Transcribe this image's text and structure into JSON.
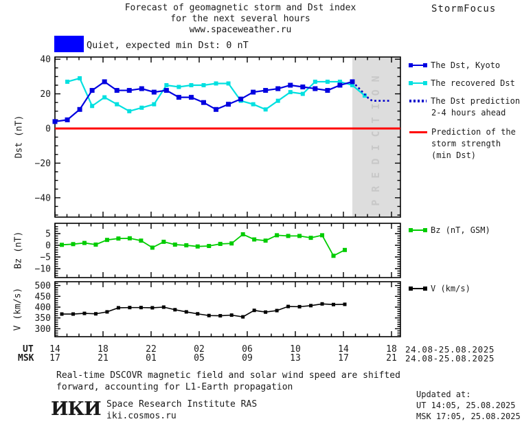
{
  "header": {
    "title_line1": "Forecast of geomagnetic storm and Dst index",
    "title_line2": "for the next several hours",
    "title_line3": "www.spaceweather.ru",
    "brand": "StormFocus"
  },
  "status": {
    "label": "Quiet, expected min Dst: 0 nT",
    "box_color": "#0000ff"
  },
  "legend": {
    "dst_kyoto": "The Dst, Kyoto",
    "recovered": "The recovered Dst",
    "prediction_line1": "The Dst prediction",
    "prediction_line2": "2-4 hours ahead",
    "strength_line1": "Prediction of the",
    "strength_line2": "storm strength",
    "strength_line3": "(min Dst)",
    "bz": "Bz (nT, GSM)",
    "v": "V (km/s)"
  },
  "xaxis": {
    "ut_label": "UT",
    "msk_label": "MSK",
    "tick_hours": [
      0,
      4,
      8,
      12,
      16,
      20,
      24,
      28
    ],
    "ut_ticks": [
      "14",
      "18",
      "22",
      "02",
      "06",
      "10",
      "14",
      "18"
    ],
    "msk_ticks": [
      "17",
      "21",
      "01",
      "05",
      "09",
      "13",
      "17",
      "21"
    ],
    "ut_date": "24.08-25.08.2025",
    "msk_date": "24.08-25.08.2025"
  },
  "chart_data": [
    {
      "type": "line",
      "panel": "dst",
      "ylabel": "Dst (nT)",
      "ylim": [
        -51,
        41
      ],
      "yticks": [
        40,
        20,
        0,
        -20,
        -40
      ],
      "y_minor_step": 5,
      "x_unit": "hours from 14:00 UT 24.08.2025",
      "prediction_zone_label": "PREDICTION",
      "series": [
        {
          "name": "The Dst, Kyoto",
          "color": "#0000e0",
          "style": "solid",
          "start_index": 0,
          "values": [
            4,
            5,
            11,
            22,
            27,
            22,
            22,
            23,
            21,
            22,
            18,
            18,
            15,
            11,
            14,
            17,
            21,
            22,
            23,
            25,
            24,
            23,
            22,
            25,
            27
          ]
        },
        {
          "name": "The recovered Dst",
          "color": "#00e0e0",
          "style": "solid",
          "start_index": 1,
          "values": [
            27,
            29,
            13,
            18,
            14,
            10,
            12,
            14,
            25,
            24,
            25,
            25,
            26,
            26,
            16,
            14,
            11,
            16,
            21,
            20,
            27,
            27,
            27,
            25,
            19
          ]
        },
        {
          "name": "The Dst prediction 2-4 hours ahead",
          "color": "#0000cc",
          "style": "dotted",
          "points": [
            [
              24,
              27
            ],
            [
              24.5,
              23.5
            ],
            [
              24.9,
              20.5
            ],
            [
              25.3,
              17.5
            ],
            [
              25.6,
              16
            ],
            [
              27.1,
              16
            ]
          ]
        },
        {
          "name": "Prediction of the storm strength (min Dst)",
          "color": "#ff0000",
          "style": "hline",
          "value": 0
        }
      ]
    },
    {
      "type": "line",
      "panel": "bz",
      "ylabel": "Bz (nT)",
      "ylim": [
        -14,
        9.5
      ],
      "yticks": [
        5,
        0,
        -5,
        -10
      ],
      "y_minor_step": 1,
      "series": [
        {
          "name": "Bz (nT, GSM)",
          "color": "#00cc00",
          "style": "solid",
          "start_index": 0,
          "values": [
            0.2,
            0.5,
            1,
            0.3,
            2.3,
            2.9,
            3,
            2,
            -1,
            1.5,
            0.3,
            0,
            -0.5,
            -0.3,
            0.6,
            0.8,
            4.7,
            2.5,
            2,
            4.3,
            4,
            4,
            3.2,
            4.3,
            -4.5,
            -2
          ]
        }
      ]
    },
    {
      "type": "line",
      "panel": "v",
      "ylabel": "V (km/s)",
      "ylim": [
        263,
        518
      ],
      "yticks": [
        500,
        450,
        400,
        350,
        300
      ],
      "y_minor_step": 10,
      "series": [
        {
          "name": "V (km/s)",
          "color": "#000000",
          "style": "solid",
          "start_index": 0,
          "values": [
            368,
            368,
            371,
            369,
            378,
            397,
            398,
            398,
            397,
            400,
            388,
            378,
            369,
            361,
            360,
            363,
            355,
            385,
            377,
            384,
            403,
            402,
            407,
            415,
            412,
            413
          ]
        }
      ]
    }
  ],
  "footer": {
    "note_line1": "Real-time DSCOVR magnetic field and solar wind speed are shifted",
    "note_line2": "forward, accounting for L1-Earth propagation",
    "logo": "ИКИ",
    "institute": "Space Research Institute RAS",
    "website": "iki.cosmos.ru",
    "updated_label": "Updated at:",
    "updated_ut": "UT  14:05, 25.08.2025",
    "updated_msk": "MSK 17:05, 25.08.2025"
  },
  "colors": {
    "dst_line": "#0000e0",
    "recovered_line": "#00e0e0",
    "prediction_dotted": "#0000cc",
    "storm_strength_line": "#ff0000",
    "bz_line": "#00cc00",
    "v_line": "#000000",
    "prediction_zone_bg": "#dddddd",
    "prediction_zone_text": "#c8c8c8",
    "text": "#1a1a1a"
  }
}
